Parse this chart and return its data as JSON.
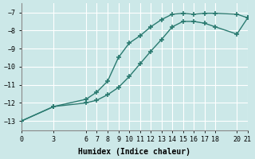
{
  "xlabel": "Humidex (Indice chaleur)",
  "bg_color": "#cce8e8",
  "grid_color": "#b0d0d0",
  "line_color": "#2a7a70",
  "marker": "+",
  "xlim": [
    0,
    21
  ],
  "ylim": [
    -13.5,
    -6.5
  ],
  "xticks": [
    0,
    3,
    6,
    7,
    8,
    9,
    10,
    11,
    12,
    13,
    14,
    15,
    16,
    17,
    18,
    20,
    21
  ],
  "yticks": [
    -13,
    -12,
    -11,
    -10,
    -9,
    -8,
    -7
  ],
  "curve_upper_x": [
    0,
    3,
    6,
    7,
    8,
    9,
    10,
    11,
    12,
    13,
    14,
    15,
    16,
    17,
    18,
    20,
    21
  ],
  "curve_upper_y": [
    -13.0,
    -12.2,
    -11.8,
    -11.4,
    -10.8,
    -9.5,
    -8.7,
    -8.3,
    -7.8,
    -7.4,
    -7.1,
    -7.05,
    -7.1,
    -7.05,
    -7.05,
    -7.1,
    -7.3
  ],
  "curve_lower_x": [
    0,
    3,
    6,
    7,
    8,
    9,
    10,
    11,
    12,
    13,
    14,
    15,
    16,
    17,
    18,
    20,
    21
  ],
  "curve_lower_y": [
    -13.0,
    -12.2,
    -12.0,
    -11.85,
    -11.55,
    -11.15,
    -10.55,
    -9.85,
    -9.15,
    -8.5,
    -7.8,
    -7.5,
    -7.5,
    -7.6,
    -7.8,
    -8.2,
    -7.3
  ]
}
